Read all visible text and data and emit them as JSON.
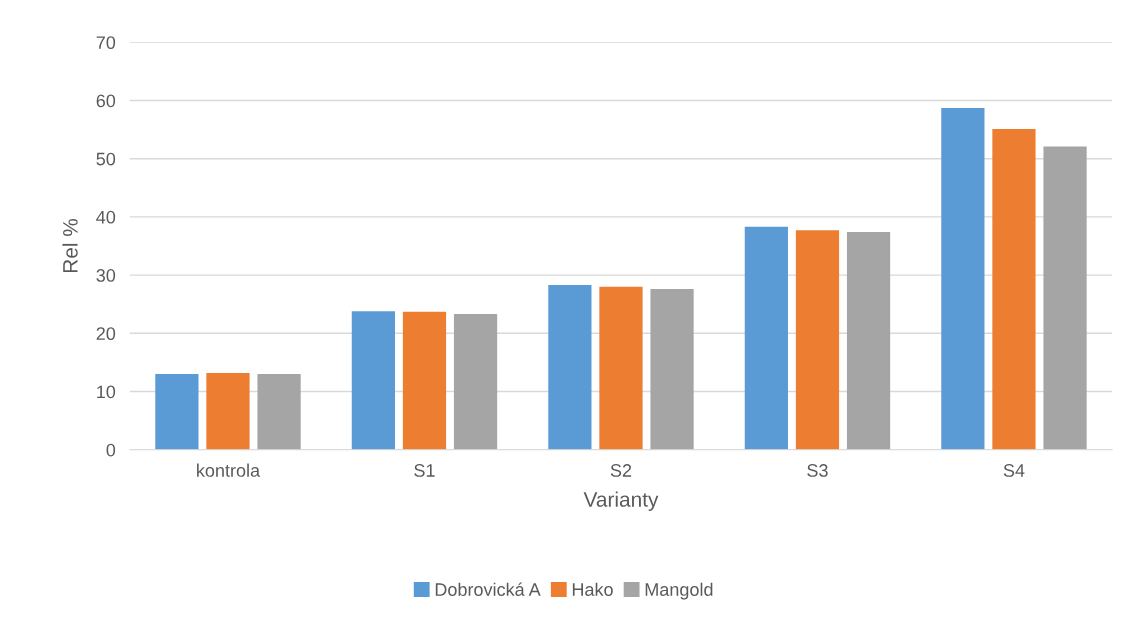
{
  "chart_data": {
    "type": "bar",
    "xlabel": "Varianty",
    "ylabel": "Rel %",
    "categories": [
      "kontrola",
      "S1",
      "S2",
      "S3",
      "S4"
    ],
    "series": [
      {
        "name": "Dobrovická A",
        "color": "#5b9bd5",
        "values": [
          13.0,
          23.8,
          28.3,
          38.3,
          58.7
        ]
      },
      {
        "name": "Hako",
        "color": "#ed7d31",
        "values": [
          13.2,
          23.7,
          28.0,
          37.7,
          55.1
        ]
      },
      {
        "name": "Mangold",
        "color": "#a5a5a5",
        "values": [
          13.0,
          23.3,
          27.6,
          37.4,
          52.1
        ]
      }
    ],
    "ylim": [
      0,
      70
    ],
    "yticks": [
      0,
      10,
      20,
      30,
      40,
      50,
      60,
      70
    ],
    "grid": "y",
    "legend": "bottom"
  }
}
